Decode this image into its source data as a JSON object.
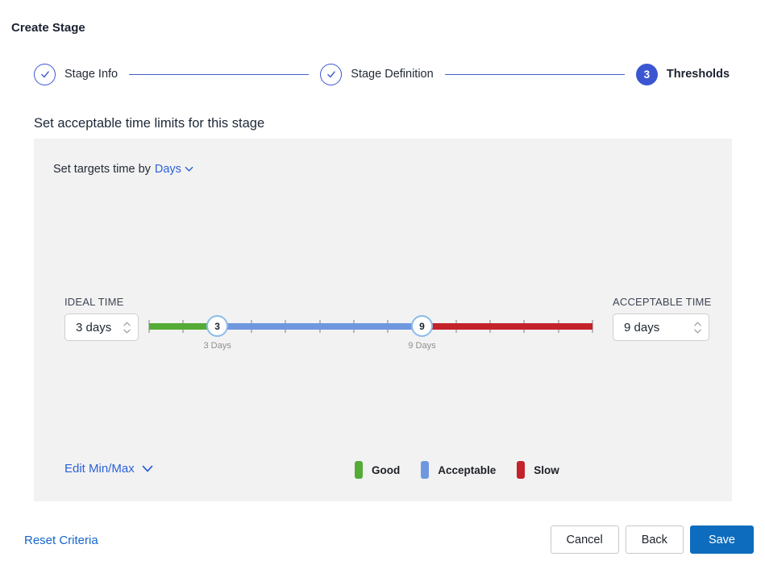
{
  "page": {
    "title": "Create Stage"
  },
  "stepper": {
    "steps": [
      {
        "label": "Stage Info",
        "state": "complete"
      },
      {
        "label": "Stage Definition",
        "state": "complete"
      },
      {
        "label": "Thresholds",
        "state": "current",
        "number": "3"
      }
    ]
  },
  "section": {
    "heading": "Set acceptable time limits for this stage"
  },
  "targets": {
    "prefix": "Set targets time by",
    "unit": "Days"
  },
  "ideal": {
    "label": "IDEAL TIME",
    "value": "3 days"
  },
  "acceptable": {
    "label": "ACCEPTABLE TIME",
    "value": "9 days"
  },
  "slider": {
    "min": 1,
    "max": 14,
    "ideal_value": 3,
    "acceptable_value": 9,
    "ideal_handle": "3",
    "acceptable_handle": "9",
    "ideal_label": "3 Days",
    "acceptable_label": "9 Days"
  },
  "legend": [
    {
      "label": "Good",
      "color": "#54ab35"
    },
    {
      "label": "Acceptable",
      "color": "#6f97df"
    },
    {
      "label": "Slow",
      "color": "#c4222a"
    }
  ],
  "edit_minmax": {
    "label": "Edit Min/Max"
  },
  "footer": {
    "reset": "Reset Criteria",
    "cancel": "Cancel",
    "back": "Back",
    "save": "Save"
  },
  "colors": {
    "good": "#54ab35",
    "acceptable_seg": "#6f97df",
    "slow": "#c4222a",
    "stepper_blue": "#3b57d2",
    "save_blue": "#0d6cbd",
    "panel_gray": "#f2f2f2"
  }
}
